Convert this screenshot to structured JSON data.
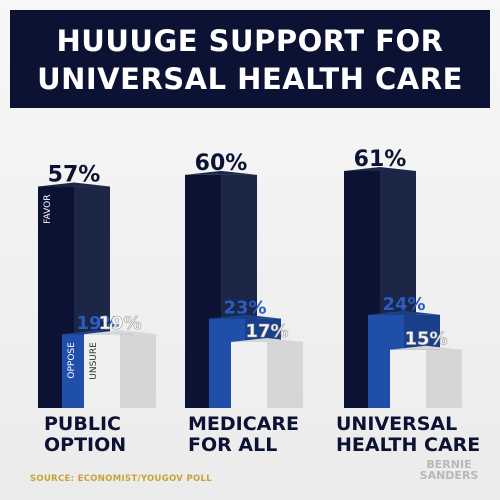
{
  "title": {
    "line1": "HUUUGE SUPPORT FOR",
    "line2": "UNIVERSAL HEALTH CARE"
  },
  "source": "SOURCE: ECONOMIST/YOUGOV POLL",
  "brand": {
    "line1": "BERNIE",
    "line2": "SANDERS"
  },
  "colors": {
    "favor": "#0c1233",
    "oppose": "#1f4fa8",
    "unsure": "#f0f0f0",
    "title_bg": "#0c1233",
    "source_text": "#c9a236"
  },
  "chart_data": {
    "type": "bar",
    "title": "HUUUGE SUPPORT FOR UNIVERSAL HEALTH CARE",
    "categories": [
      "PUBLIC OPTION",
      "MEDICARE FOR ALL",
      "UNIVERSAL HEALTH CARE"
    ],
    "category_lines": [
      [
        "PUBLIC",
        "OPTION"
      ],
      [
        "MEDICARE",
        "FOR ALL"
      ],
      [
        "UNIVERSAL",
        "HEALTH CARE"
      ]
    ],
    "series": [
      {
        "name": "FAVOR",
        "values": [
          57,
          60,
          61
        ],
        "value_labels": [
          "57%",
          "60%",
          "61%"
        ]
      },
      {
        "name": "OPPOSE",
        "values": [
          19,
          23,
          24
        ],
        "value_labels": [
          "19%",
          "23%",
          "24%"
        ]
      },
      {
        "name": "UNSURE",
        "values": [
          19,
          17,
          15
        ],
        "value_labels": [
          "19%",
          "17%",
          "15%"
        ]
      }
    ],
    "series_labels_on_bars": [
      "FAVOR",
      "OPPOSE",
      "UNSURE"
    ],
    "ylim": [
      0,
      61
    ],
    "xlabel": "",
    "ylabel": ""
  }
}
